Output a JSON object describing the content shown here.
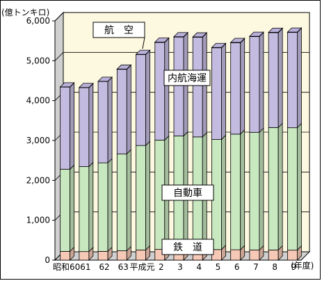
{
  "chart_data": {
    "type": "bar",
    "stacked": true,
    "style": "3d",
    "y_unit": "(億トンキロ)",
    "x_unit": "(年度)",
    "ylim": [
      0,
      6000
    ],
    "yticks": [
      "0",
      "1,000",
      "2,000",
      "3,000",
      "4,000",
      "5,000",
      "6,000"
    ],
    "categories": [
      "昭和60",
      "61",
      "62",
      "63",
      "平成元",
      "2",
      "3",
      "4",
      "5",
      "6",
      "7",
      "8",
      "9"
    ],
    "series": [
      {
        "name": "鉄　道",
        "color": "#f6c9b6",
        "values": [
          220,
          215,
          220,
          235,
          255,
          270,
          275,
          270,
          265,
          260,
          255,
          255,
          250
        ]
      },
      {
        "name": "自動車",
        "color": "#c8e8c0",
        "values": [
          2060,
          2130,
          2220,
          2430,
          2620,
          2740,
          2840,
          2820,
          2760,
          2900,
          2950,
          3070,
          3070
        ]
      },
      {
        "name": "内航海運",
        "color": "#c4bce0",
        "values": [
          2060,
          1980,
          2040,
          2120,
          2280,
          2450,
          2480,
          2500,
          2300,
          2290,
          2400,
          2380,
          2390
        ]
      },
      {
        "name": "航　空",
        "color": "#b8b0d8",
        "values": [
          5,
          5,
          5,
          6,
          6,
          8,
          8,
          8,
          8,
          9,
          9,
          9,
          9
        ]
      }
    ],
    "grid": true
  },
  "colors": {
    "wall": "#fdf9e0",
    "floor": "#d0d0d0",
    "grid": "#000000"
  }
}
